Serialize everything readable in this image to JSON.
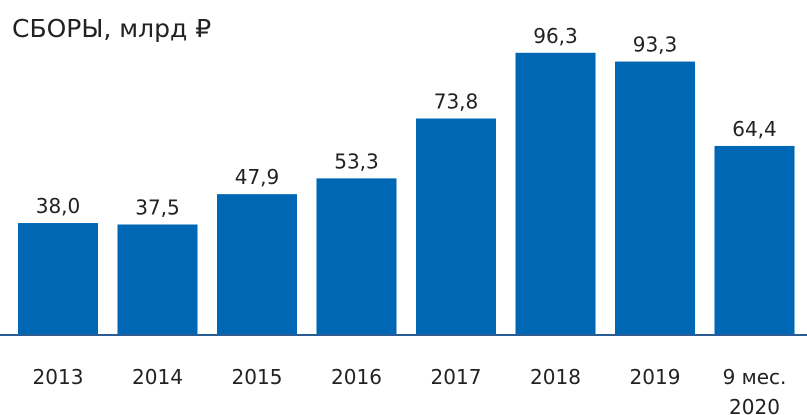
{
  "chart_data": {
    "type": "bar",
    "title": "СБОРЫ, млрд ₽",
    "categories": [
      "2013",
      "2014",
      "2015",
      "2016",
      "2017",
      "2018",
      "2019",
      "9 мес. 2020"
    ],
    "values": [
      38.0,
      37.5,
      47.9,
      53.3,
      73.8,
      96.3,
      93.3,
      64.4
    ],
    "value_labels": [
      "38,0",
      "37,5",
      "47,9",
      "53,3",
      "73,8",
      "96,3",
      "93,3",
      "64,4"
    ],
    "color": "#0067b4",
    "ylim": [
      0,
      100
    ]
  }
}
